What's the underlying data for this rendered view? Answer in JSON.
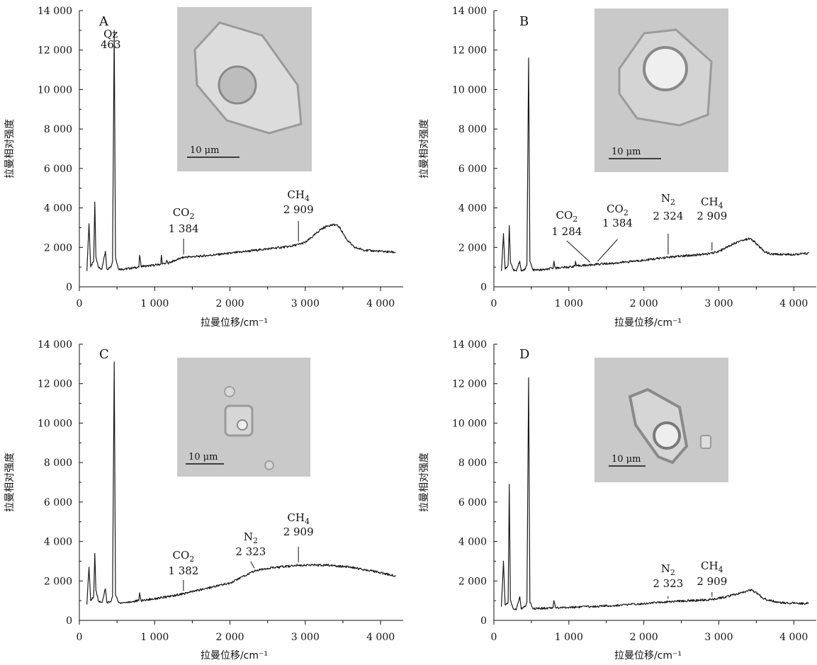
{
  "chart_data": [
    {
      "panel": "A",
      "type": "line",
      "xlabel": "拉曼位移/cm⁻¹",
      "ylabel": "拉曼相对强度",
      "xlim": [
        0,
        4300
      ],
      "ylim": [
        0,
        14000
      ],
      "xticks": [
        0,
        1000,
        2000,
        3000,
        4000
      ],
      "xtick_labels": [
        "0",
        "1 000",
        "2 000",
        "3 000",
        "4 000"
      ],
      "yticks": [
        0,
        2000,
        4000,
        6000,
        8000,
        10000,
        12000,
        14000
      ],
      "ytick_labels": [
        "0",
        "2 000",
        "4 000",
        "6 000",
        "8 000",
        "10 000",
        "12 000",
        "14 000"
      ],
      "spectrum": [
        [
          100,
          800
        ],
        [
          128,
          3200
        ],
        [
          150,
          1000
        ],
        [
          190,
          1300
        ],
        [
          205,
          4300
        ],
        [
          220,
          1500
        ],
        [
          260,
          950
        ],
        [
          300,
          900
        ],
        [
          345,
          1800
        ],
        [
          365,
          900
        ],
        [
          420,
          1000
        ],
        [
          440,
          1300
        ],
        [
          463,
          13000
        ],
        [
          480,
          1500
        ],
        [
          520,
          900
        ],
        [
          600,
          900
        ],
        [
          700,
          950
        ],
        [
          790,
          1000
        ],
        [
          800,
          1600
        ],
        [
          820,
          1050
        ],
        [
          900,
          1050
        ],
        [
          1000,
          1100
        ],
        [
          1080,
          1150
        ],
        [
          1090,
          1600
        ],
        [
          1100,
          1150
        ],
        [
          1150,
          1200
        ],
        [
          1160,
          1350
        ],
        [
          1175,
          1200
        ],
        [
          1384,
          1500
        ],
        [
          1600,
          1550
        ],
        [
          2000,
          1700
        ],
        [
          2400,
          1880
        ],
        [
          2800,
          2050
        ],
        [
          2909,
          2150
        ],
        [
          3000,
          2250
        ],
        [
          3100,
          2550
        ],
        [
          3200,
          2900
        ],
        [
          3300,
          3100
        ],
        [
          3400,
          3150
        ],
        [
          3450,
          3050
        ],
        [
          3550,
          2400
        ],
        [
          3650,
          2000
        ],
        [
          3800,
          1850
        ],
        [
          4000,
          1800
        ],
        [
          4200,
          1750
        ]
      ],
      "annotations": [
        {
          "label": "Qz",
          "value": "463",
          "x": 463
        },
        {
          "label": "CO₂",
          "value": "1  384",
          "x": 1384
        },
        {
          "label": "CH₄",
          "value": "2  909",
          "x": 2909
        }
      ],
      "inset": {
        "scale_label": "10  μm"
      }
    },
    {
      "panel": "B",
      "type": "line",
      "xlabel": "拉曼位移/cm⁻¹",
      "ylabel": "拉曼相对强度",
      "xlim": [
        0,
        4300
      ],
      "ylim": [
        0,
        14000
      ],
      "xticks": [
        0,
        1000,
        2000,
        3000,
        4000
      ],
      "xtick_labels": [
        "0",
        "1 000",
        "2 000",
        "3 000",
        "4 000"
      ],
      "yticks": [
        0,
        2000,
        4000,
        6000,
        8000,
        10000,
        12000,
        14000
      ],
      "ytick_labels": [
        "0",
        "2 000",
        "4 000",
        "6 000",
        "8 000",
        "10 000",
        "12 000",
        "14 000"
      ],
      "spectrum": [
        [
          100,
          800
        ],
        [
          128,
          2700
        ],
        [
          150,
          900
        ],
        [
          190,
          1100
        ],
        [
          205,
          3100
        ],
        [
          220,
          1300
        ],
        [
          260,
          850
        ],
        [
          300,
          800
        ],
        [
          345,
          1300
        ],
        [
          365,
          800
        ],
        [
          420,
          900
        ],
        [
          440,
          1100
        ],
        [
          463,
          11600
        ],
        [
          480,
          1300
        ],
        [
          520,
          850
        ],
        [
          600,
          850
        ],
        [
          700,
          880
        ],
        [
          790,
          950
        ],
        [
          800,
          1300
        ],
        [
          820,
          950
        ],
        [
          900,
          980
        ],
        [
          1000,
          1000
        ],
        [
          1080,
          1050
        ],
        [
          1090,
          1300
        ],
        [
          1100,
          1050
        ],
        [
          1150,
          1080
        ],
        [
          1284,
          1100
        ],
        [
          1384,
          1150
        ],
        [
          1600,
          1200
        ],
        [
          2000,
          1350
        ],
        [
          2324,
          1500
        ],
        [
          2400,
          1520
        ],
        [
          2800,
          1650
        ],
        [
          2909,
          1700
        ],
        [
          3000,
          1800
        ],
        [
          3100,
          2000
        ],
        [
          3200,
          2200
        ],
        [
          3300,
          2350
        ],
        [
          3420,
          2450
        ],
        [
          3500,
          2200
        ],
        [
          3600,
          1800
        ],
        [
          3700,
          1650
        ],
        [
          4000,
          1650
        ],
        [
          4200,
          1700
        ]
      ],
      "annotations": [
        {
          "label": "CO₂",
          "value": "1  284",
          "x": 1284
        },
        {
          "label": "CO₂",
          "value": "1  384",
          "x": 1384
        },
        {
          "label": "N₂",
          "value": "2  324",
          "x": 2324
        },
        {
          "label": "CH₄",
          "value": "2  909",
          "x": 2909
        }
      ],
      "inset": {
        "scale_label": "10  μm"
      }
    },
    {
      "panel": "C",
      "type": "line",
      "xlabel": "拉曼位移/cm⁻¹",
      "ylabel": "拉曼相对强度",
      "xlim": [
        0,
        4300
      ],
      "ylim": [
        0,
        14000
      ],
      "xticks": [
        0,
        1000,
        2000,
        3000,
        4000
      ],
      "xtick_labels": [
        "0",
        "1 000",
        "2 000",
        "3 000",
        "4 000"
      ],
      "yticks": [
        0,
        2000,
        4000,
        6000,
        8000,
        10000,
        12000,
        14000
      ],
      "ytick_labels": [
        "0",
        "2 000",
        "4 000",
        "6 000",
        "8 000",
        "10 000",
        "12 000",
        "14 000"
      ],
      "spectrum": [
        [
          100,
          800
        ],
        [
          128,
          2700
        ],
        [
          150,
          1000
        ],
        [
          190,
          1200
        ],
        [
          205,
          3400
        ],
        [
          220,
          1500
        ],
        [
          260,
          950
        ],
        [
          300,
          900
        ],
        [
          345,
          1600
        ],
        [
          365,
          900
        ],
        [
          420,
          950
        ],
        [
          440,
          1200
        ],
        [
          463,
          13100
        ],
        [
          480,
          1300
        ],
        [
          520,
          900
        ],
        [
          600,
          900
        ],
        [
          700,
          950
        ],
        [
          790,
          1000
        ],
        [
          800,
          1400
        ],
        [
          820,
          1000
        ],
        [
          900,
          1050
        ],
        [
          1000,
          1100
        ],
        [
          1100,
          1150
        ],
        [
          1382,
          1350
        ],
        [
          1600,
          1550
        ],
        [
          2000,
          1900
        ],
        [
          2323,
          2500
        ],
        [
          2500,
          2650
        ],
        [
          2800,
          2750
        ],
        [
          2909,
          2800
        ],
        [
          3000,
          2800
        ],
        [
          3300,
          2800
        ],
        [
          3600,
          2700
        ],
        [
          3900,
          2500
        ],
        [
          4200,
          2250
        ]
      ],
      "annotations": [
        {
          "label": "CO₂",
          "value": "1  382",
          "x": 1382
        },
        {
          "label": "N₂",
          "value": "2  323",
          "x": 2323
        },
        {
          "label": "CH₄",
          "value": "2  909",
          "x": 2909
        }
      ],
      "inset": {
        "scale_label": "10  μm"
      }
    },
    {
      "panel": "D",
      "type": "line",
      "xlabel": "拉曼位移/cm⁻¹",
      "ylabel": "拉曼相对强度",
      "xlim": [
        0,
        4300
      ],
      "ylim": [
        0,
        14000
      ],
      "xticks": [
        0,
        1000,
        2000,
        3000,
        4000
      ],
      "xtick_labels": [
        "0",
        "1 000",
        "2 000",
        "3 000",
        "4 000"
      ],
      "yticks": [
        0,
        2000,
        4000,
        6000,
        8000,
        10000,
        12000,
        14000
      ],
      "ytick_labels": [
        "0",
        "2 000",
        "4 000",
        "6 000",
        "8 000",
        "10 000",
        "12 000",
        "14 000"
      ],
      "spectrum": [
        [
          100,
          700
        ],
        [
          128,
          3000
        ],
        [
          150,
          800
        ],
        [
          190,
          900
        ],
        [
          205,
          6900
        ],
        [
          220,
          1000
        ],
        [
          260,
          600
        ],
        [
          300,
          550
        ],
        [
          345,
          1200
        ],
        [
          365,
          600
        ],
        [
          420,
          700
        ],
        [
          440,
          900
        ],
        [
          463,
          12300
        ],
        [
          480,
          900
        ],
        [
          520,
          600
        ],
        [
          600,
          600
        ],
        [
          700,
          620
        ],
        [
          790,
          650
        ],
        [
          800,
          1000
        ],
        [
          820,
          650
        ],
        [
          900,
          650
        ],
        [
          1000,
          650
        ],
        [
          1100,
          680
        ],
        [
          1300,
          700
        ],
        [
          1600,
          750
        ],
        [
          2000,
          850
        ],
        [
          2323,
          950
        ],
        [
          2600,
          1000
        ],
        [
          2909,
          1050
        ],
        [
          3100,
          1200
        ],
        [
          3300,
          1400
        ],
        [
          3420,
          1550
        ],
        [
          3500,
          1400
        ],
        [
          3600,
          1100
        ],
        [
          3800,
          900
        ],
        [
          4200,
          850
        ]
      ],
      "annotations": [
        {
          "label": "N₂",
          "value": "2  323",
          "x": 2323
        },
        {
          "label": "CH₄",
          "value": "2  909",
          "x": 2909
        }
      ],
      "inset": {
        "scale_label": "10  μm"
      }
    }
  ],
  "colors": {
    "line": "#1a1a1a",
    "inset_bg": "#c9c9c9"
  }
}
